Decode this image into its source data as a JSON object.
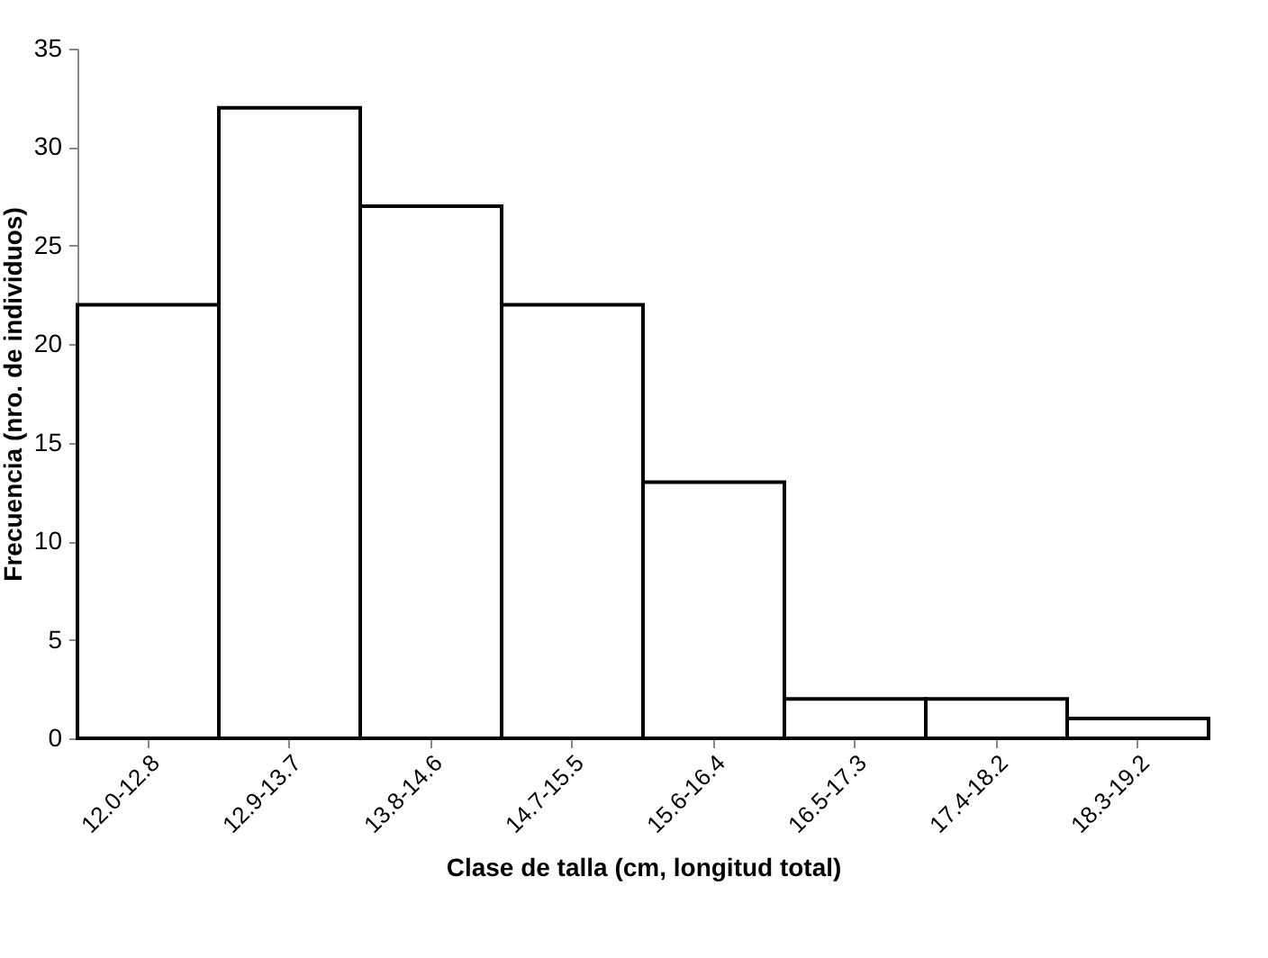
{
  "chart_data": {
    "type": "bar",
    "xlabel": "Clase de talla (cm, longitud total)",
    "ylabel": "Frecuencia (nro. de individuos)",
    "categories": [
      "12.0-12.8",
      "12.9-13.7",
      "13.8-14.6",
      "14.7-15.5",
      "15.6-16.4",
      "16.5-17.3",
      "17.4-18.2",
      "18.3-19.2"
    ],
    "values": [
      22,
      32,
      27,
      22,
      13,
      2,
      2,
      1
    ],
    "color": "#ffffff",
    "ylim": [
      0,
      35
    ],
    "yticks": [
      0,
      5,
      10,
      15,
      20,
      25,
      30,
      35
    ],
    "grid": false
  }
}
